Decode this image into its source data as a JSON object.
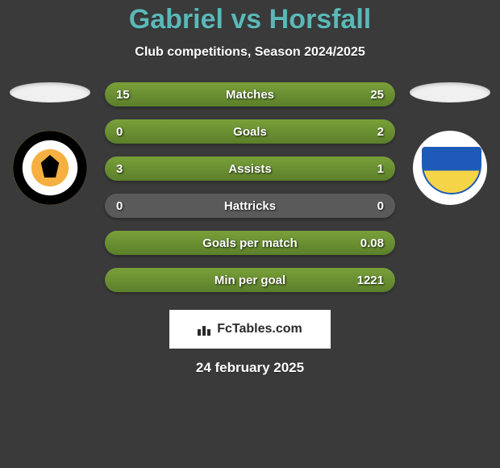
{
  "header": {
    "title": "Gabriel vs Horsfall",
    "subtitle": "Club competitions, Season 2024/2025",
    "title_color": "#5cb8b8",
    "subtitle_color": "#ffffff"
  },
  "background_color": "#3a3a3a",
  "bar_empty_color": "#5a5a5a",
  "bar_fill_color": "#6b9030",
  "text_color": "#ffffff",
  "player_left": {
    "name": "Gabriel",
    "club_logo": "blackpool-fc-logo",
    "logo_colors": {
      "primary": "#f5b041",
      "secondary": "#000000",
      "ring": "#ffffff"
    }
  },
  "player_right": {
    "name": "Horsfall",
    "club_logo": "stockport-county-logo",
    "logo_colors": {
      "primary": "#1e5bb8",
      "secondary": "#f5d547",
      "bg": "#ffffff"
    }
  },
  "stats": [
    {
      "label": "Matches",
      "left_value": "15",
      "right_value": "25",
      "left_pct": 37.5,
      "right_pct": 62.5
    },
    {
      "label": "Goals",
      "left_value": "0",
      "right_value": "2",
      "left_pct": 0,
      "right_pct": 100
    },
    {
      "label": "Assists",
      "left_value": "3",
      "right_value": "1",
      "left_pct": 75,
      "right_pct": 25
    },
    {
      "label": "Hattricks",
      "left_value": "0",
      "right_value": "0",
      "left_pct": 0,
      "right_pct": 0
    },
    {
      "label": "Goals per match",
      "left_value": "",
      "right_value": "0.08",
      "left_pct": 0,
      "right_pct": 100
    },
    {
      "label": "Min per goal",
      "left_value": "",
      "right_value": "1221",
      "left_pct": 0,
      "right_pct": 100
    }
  ],
  "footer": {
    "site_name": "FcTables.com",
    "date": "24 february 2025"
  }
}
